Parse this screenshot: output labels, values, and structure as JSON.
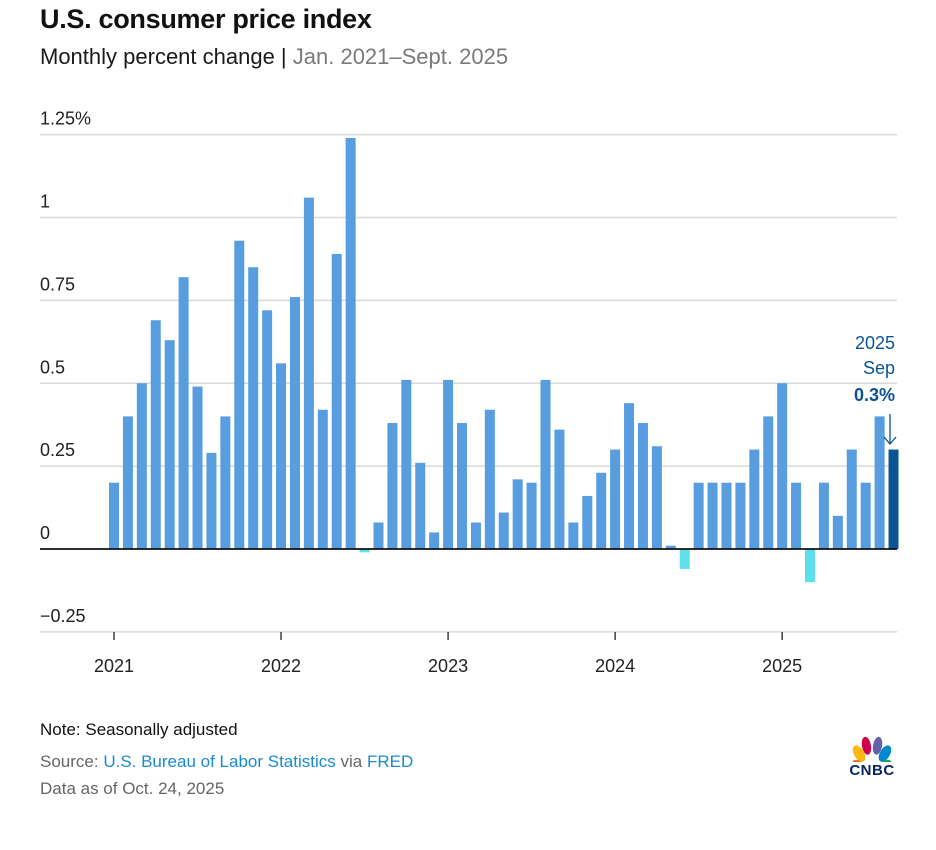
{
  "header": {
    "title": "U.S. consumer price index",
    "subtitle_main": "Monthly percent change | ",
    "subtitle_range": "Jan. 2021–Sept. 2025"
  },
  "footer": {
    "note": "Note: Seasonally adjusted",
    "source_prefix": "Source: ",
    "source_link1": "U.S. Bureau of Labor Statistics",
    "source_mid": " via ",
    "source_link2": "FRED",
    "as_of": "Data as of Oct. 24, 2025",
    "logo_text": "CNBC"
  },
  "colors": {
    "positive": "#589de0",
    "negative": "#5de0ec",
    "highlight": "#0b5394",
    "gridline": "#d9d9d9",
    "axis": "#111111"
  },
  "chart_data": {
    "type": "bar",
    "title": "U.S. consumer price index",
    "subtitle": "Monthly percent change | Jan. 2021–Sept. 2025",
    "xlabel": "",
    "ylabel": "",
    "ylim": [
      -0.25,
      1.25
    ],
    "grid": true,
    "y_ticks": [
      -0.25,
      0,
      0.25,
      0.5,
      0.75,
      1,
      1.25
    ],
    "y_tick_labels": [
      "−0.25",
      "0",
      "0.25",
      "0.5",
      "0.75",
      "1",
      "1.25%"
    ],
    "x_tick_labels": [
      "2021",
      "2022",
      "2023",
      "2024",
      "2025"
    ],
    "categories": [
      "2021-01",
      "2021-02",
      "2021-03",
      "2021-04",
      "2021-05",
      "2021-06",
      "2021-07",
      "2021-08",
      "2021-09",
      "2021-10",
      "2021-11",
      "2021-12",
      "2022-01",
      "2022-02",
      "2022-03",
      "2022-04",
      "2022-05",
      "2022-06",
      "2022-07",
      "2022-08",
      "2022-09",
      "2022-10",
      "2022-11",
      "2022-12",
      "2023-01",
      "2023-02",
      "2023-03",
      "2023-04",
      "2023-05",
      "2023-06",
      "2023-07",
      "2023-08",
      "2023-09",
      "2023-10",
      "2023-11",
      "2023-12",
      "2024-01",
      "2024-02",
      "2024-03",
      "2024-04",
      "2024-05",
      "2024-06",
      "2024-07",
      "2024-08",
      "2024-09",
      "2024-10",
      "2024-11",
      "2024-12",
      "2025-01",
      "2025-02",
      "2025-03",
      "2025-04",
      "2025-05",
      "2025-06",
      "2025-07",
      "2025-08",
      "2025-09"
    ],
    "values": [
      0.2,
      0.4,
      0.5,
      0.69,
      0.63,
      0.82,
      0.49,
      0.29,
      0.4,
      0.93,
      0.85,
      0.72,
      0.56,
      0.76,
      1.06,
      0.42,
      0.89,
      1.24,
      -0.01,
      0.08,
      0.38,
      0.51,
      0.26,
      0.05,
      0.51,
      0.38,
      0.08,
      0.42,
      0.11,
      0.21,
      0.2,
      0.51,
      0.36,
      0.08,
      0.16,
      0.23,
      0.3,
      0.44,
      0.38,
      0.31,
      0.01,
      -0.06,
      0.2,
      0.2,
      0.2,
      0.2,
      0.3,
      0.4,
      0.5,
      0.2,
      -0.1,
      0.2,
      0.1,
      0.3,
      0.2,
      0.4,
      0.3
    ],
    "highlight_index": 56,
    "annotation": {
      "year": "2025",
      "month": "Sep",
      "value": "0.3%",
      "arrow": "down-arrow"
    }
  }
}
